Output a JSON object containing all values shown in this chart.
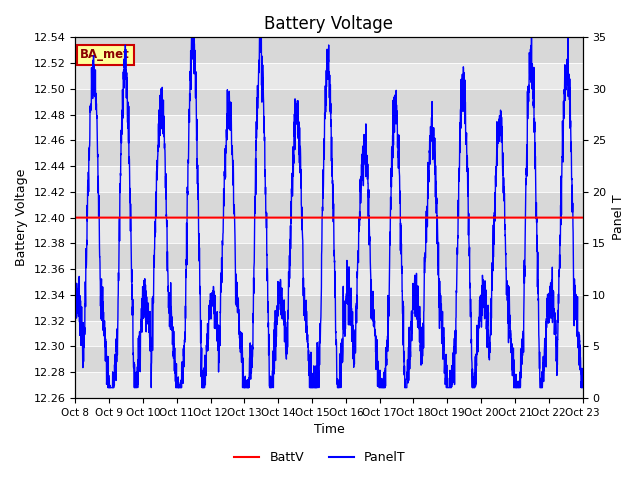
{
  "title": "Battery Voltage",
  "xlabel": "Time",
  "ylabel_left": "Battery Voltage",
  "ylabel_right": "Panel T",
  "ylim_left": [
    12.26,
    12.54
  ],
  "ylim_right": [
    0,
    35
  ],
  "battv_value": 12.4,
  "battv_color": "#ff0000",
  "panelt_color": "#0000ff",
  "background_color": "#ffffff",
  "band_colors": [
    "#e8e8e8",
    "#d8d8d8"
  ],
  "annotation_text": "BA_met",
  "annotation_bg": "#ffff99",
  "annotation_border": "#cc0000",
  "xtick_labels": [
    "Oct 8",
    "Oct 9",
    "Oct 10",
    "Oct 11",
    "Oct 12",
    "Oct 13",
    "Oct 14",
    "Oct 15",
    "Oct 16",
    "Oct 17",
    "Oct 18",
    "Oct 19",
    "Oct 20",
    "Oct 21",
    "Oct 22",
    "Oct 23"
  ],
  "yticks_left": [
    12.26,
    12.28,
    12.3,
    12.32,
    12.34,
    12.36,
    12.38,
    12.4,
    12.42,
    12.44,
    12.46,
    12.48,
    12.5,
    12.52,
    12.54
  ],
  "yticks_right": [
    0,
    5,
    10,
    15,
    20,
    25,
    30,
    35
  ],
  "n_days": 15,
  "legend_labels": [
    "BattV",
    "PanelT"
  ],
  "title_fontsize": 12,
  "axis_label_fontsize": 9,
  "tick_fontsize": 8
}
